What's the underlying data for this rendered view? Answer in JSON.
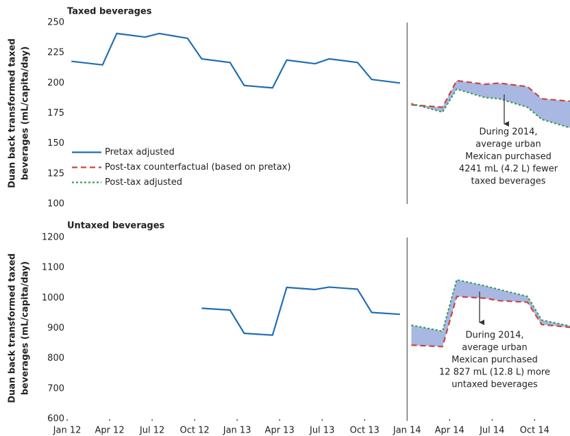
{
  "chart_data": [
    {
      "type": "line",
      "title": "Taxed beverages",
      "ylabel": [
        "Duan back transformed taxed",
        "beverages (mL/capita/day)"
      ],
      "xlim": [
        0,
        35.5
      ],
      "ylim": [
        100,
        250
      ],
      "yticks": [
        100,
        125,
        150,
        175,
        200,
        225,
        250
      ],
      "divider_x": 24,
      "legend": "center left",
      "shade_color": "#a9b7e3",
      "series": [
        {
          "name": "Pretax adjusted",
          "color": "#1f6db3",
          "style": "solid",
          "x": [
            0.3,
            2.5,
            3.5,
            5.5,
            6.5,
            8.5,
            9.5,
            11.5,
            12.5,
            14.5,
            15.5,
            17.5,
            18.5,
            20.5,
            21.5,
            23.5
          ],
          "values": [
            218,
            215,
            241,
            238,
            241,
            237,
            220,
            217,
            198,
            196,
            219,
            216,
            220,
            217,
            203,
            200
          ]
        },
        {
          "name": "Post-tax counterfactual (based on pretax)",
          "color": "#c8463a",
          "style": "dashed",
          "x": [
            24.3,
            26.5,
            27.5,
            29.5,
            30.5,
            32.5,
            33.5,
            35.5
          ],
          "values": [
            182,
            180,
            202,
            199,
            200,
            197,
            187,
            185
          ]
        },
        {
          "name": "Post-tax adjusted",
          "color": "#3a9a5a",
          "style": "dotted",
          "x": [
            24.3,
            26.5,
            27.5,
            29.5,
            30.5,
            32.5,
            33.5,
            35.5
          ],
          "values": [
            183,
            176,
            195,
            188,
            187,
            180,
            170,
            163
          ]
        }
      ],
      "annotation": [
        "During 2014,",
        "average urban",
        "Mexican purchased",
        "4241 mL (4.2 L) fewer",
        "taxed beverages"
      ]
    },
    {
      "type": "line",
      "title": "Untaxed beverages",
      "ylabel": [
        "Duan back transformed taxed",
        "beverages (mL/capita/day)"
      ],
      "xlim": [
        0,
        35.5
      ],
      "ylim": [
        600,
        1200
      ],
      "yticks": [
        600,
        700,
        800,
        900,
        1000,
        1100,
        1200
      ],
      "xticks": [
        {
          "value": 0,
          "label": "Jan 12"
        },
        {
          "value": 3,
          "label": "Apr 12"
        },
        {
          "value": 6,
          "label": "Jul 12"
        },
        {
          "value": 9,
          "label": "Oct 12"
        },
        {
          "value": 12,
          "label": "Jan 13"
        },
        {
          "value": 15,
          "label": "Apr 13"
        },
        {
          "value": 18,
          "label": "Jul 13"
        },
        {
          "value": 21,
          "label": "Oct 13"
        },
        {
          "value": 24,
          "label": "Jan 14"
        },
        {
          "value": 27,
          "label": "Apr 14"
        },
        {
          "value": 30,
          "label": "Jul 14"
        },
        {
          "value": 33,
          "label": "Oct 14"
        }
      ],
      "divider_x": 24,
      "shade_color": "#a9b7e3",
      "series": [
        {
          "color": "#1f6db3",
          "style": "solid",
          "x": [
            0.3,
            2.5,
            3.5,
            5.5,
            6.5,
            8.5,
            9.5,
            11.5,
            12.5,
            14.5,
            15.5,
            17.5,
            18.5,
            20.5,
            21.5,
            23.5
          ],
          "values": [
            null,
            null,
            null,
            null,
            null,
            null,
            966,
            960,
            883,
            877,
            1035,
            1028,
            1036,
            1029,
            952,
            946
          ]
        },
        {
          "color": "#c8463a",
          "style": "dashed",
          "x": [
            24.3,
            26.5,
            27.5,
            29.5,
            30.5,
            32.5,
            33.5,
            35.5
          ],
          "values": [
            844,
            839,
            1005,
            999,
            991,
            986,
            912,
            903
          ]
        },
        {
          "color": "#3a9a5a",
          "style": "dotted",
          "x": [
            24.3,
            26.5,
            27.5,
            29.5,
            30.5,
            32.5,
            33.5,
            35.5
          ],
          "values": [
            910,
            890,
            1060,
            1040,
            1028,
            1005,
            927,
            907
          ]
        }
      ],
      "annotation": [
        "During 2014,",
        "average urban",
        "Mexican purchased",
        "12 827 mL (12.8 L) more",
        "untaxed beverages"
      ]
    }
  ]
}
